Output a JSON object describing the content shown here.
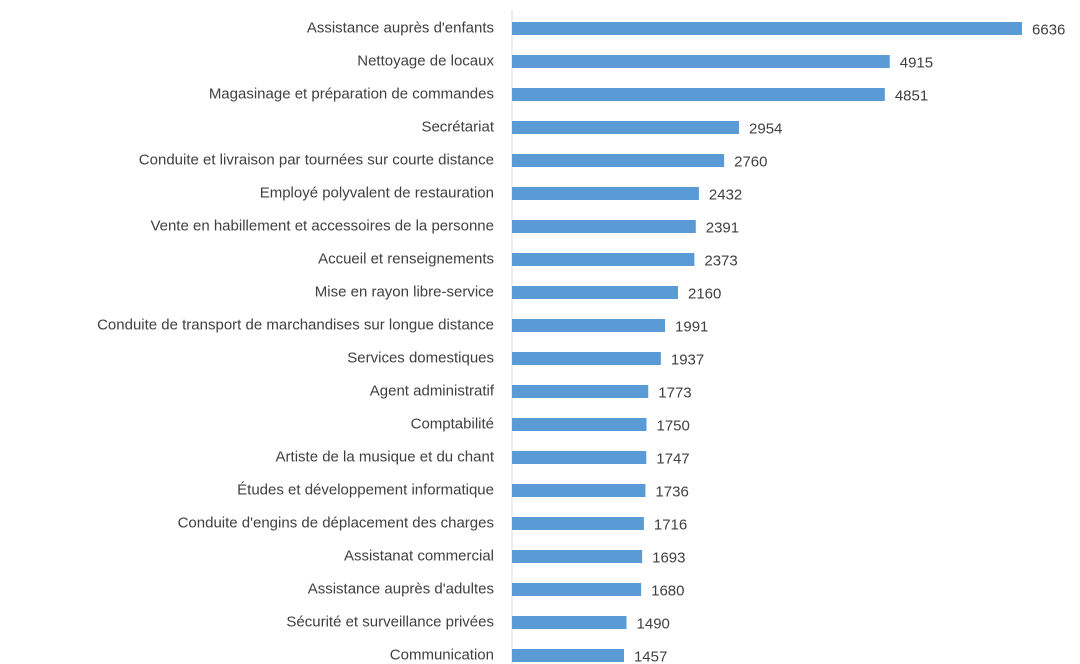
{
  "chart_data": {
    "type": "hbar",
    "categories": [
      "Assistance auprès d'enfants",
      "Nettoyage de locaux",
      "Magasinage et préparation de commandes",
      "Secrétariat",
      "Conduite et livraison par tournées sur courte distance",
      "Employé polyvalent de restauration",
      "Vente en habillement et accessoires de la personne",
      "Accueil et renseignements",
      "Mise en rayon libre-service",
      "Conduite de transport de marchandises sur longue distance",
      "Services domestiques",
      "Agent administratif",
      "Comptabilité",
      "Artiste de la musique et du chant",
      "Études et développement informatique",
      "Conduite d'engins de déplacement des charges",
      "Assistanat commercial",
      "Assistance auprès d'adultes",
      "Sécurité et surveillance privées",
      "Communication"
    ],
    "values": [
      6636,
      4915,
      4851,
      2954,
      2760,
      2432,
      2391,
      2373,
      2160,
      1991,
      1937,
      1773,
      1750,
      1747,
      1736,
      1716,
      1693,
      1680,
      1490,
      1457
    ],
    "color": "#5b9bd5",
    "xlim": [
      0,
      7000
    ]
  }
}
